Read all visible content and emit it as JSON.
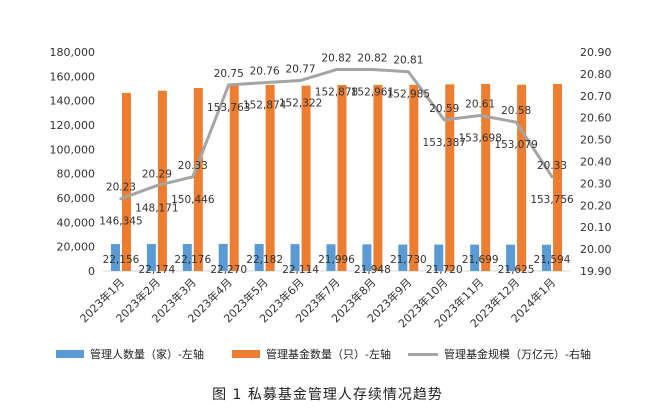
{
  "chart_data": {
    "type": "bar",
    "categories": [
      "2023年1月",
      "2023年2月",
      "2023年3月",
      "2023年4月",
      "2023年5月",
      "2023年6月",
      "2023年7月",
      "2023年8月",
      "2023年9月",
      "2023年10月",
      "2023年11月",
      "2023年12月",
      "2024年1月"
    ],
    "series": [
      {
        "name": "管理人数量（家）-左轴",
        "kind": "bar",
        "axis": "left",
        "color": "#5b9bd5",
        "values": [
          22156,
          22174,
          22176,
          22270,
          22182,
          22114,
          21996,
          21948,
          21730,
          21720,
          21699,
          21625,
          21594
        ],
        "labels": [
          "22,156",
          "22,174",
          "22,176",
          "22,270",
          "22,182",
          "22,114",
          "21,996",
          "21,948",
          "21,730",
          "21,720",
          "21,699",
          "21,625",
          "21,594"
        ]
      },
      {
        "name": "管理基金数量（只）-左轴",
        "kind": "bar",
        "axis": "left",
        "color": "#ed7d31",
        "values": [
          146345,
          148171,
          150446,
          153763,
          152874,
          152322,
          152878,
          152961,
          152985,
          153387,
          153698,
          153079,
          153756
        ],
        "labels": [
          "146,345",
          "148,171",
          "150,446",
          "153,763",
          "152,874",
          "152,322",
          "152,878",
          "152,961",
          "152,985",
          "153,387",
          "153,698",
          "153,079",
          "153,756"
        ]
      },
      {
        "name": "管理基金规模（万亿元）-右轴",
        "kind": "line",
        "axis": "right",
        "color": "#a5a5a5",
        "values": [
          20.23,
          20.29,
          20.33,
          20.75,
          20.76,
          20.77,
          20.82,
          20.82,
          20.81,
          20.59,
          20.61,
          20.58,
          20.33
        ],
        "labels": [
          "20.23",
          "20.29",
          "20.33",
          "20.75",
          "20.76",
          "20.77",
          "20.82",
          "20.82",
          "20.81",
          "20.59",
          "20.61",
          "20.58",
          "20.33"
        ]
      }
    ],
    "left_axis": {
      "ylim": [
        0,
        180000
      ],
      "ticks": [
        "0",
        "20,000",
        "40,000",
        "60,000",
        "80,000",
        "100,000",
        "120,000",
        "140,000",
        "160,000",
        "180,000"
      ]
    },
    "right_axis": {
      "ylim": [
        19.9,
        20.9
      ],
      "ticks": [
        "19.90",
        "20.00",
        "20.10",
        "20.20",
        "20.30",
        "20.40",
        "20.50",
        "20.60",
        "20.70",
        "20.80",
        "20.90"
      ]
    },
    "grid": false,
    "legend_position": "bottom"
  },
  "legend": [
    {
      "label": "管理人数量（家）-左轴",
      "color": "#5b9bd5",
      "kind": "bar"
    },
    {
      "label": "管理基金数量（只）-左轴",
      "color": "#ed7d31",
      "kind": "bar"
    },
    {
      "label": "管理基金规模（万亿元）-右轴",
      "color": "#a5a5a5",
      "kind": "line"
    }
  ],
  "caption": "图 1  私募基金管理人存续情况趋势"
}
